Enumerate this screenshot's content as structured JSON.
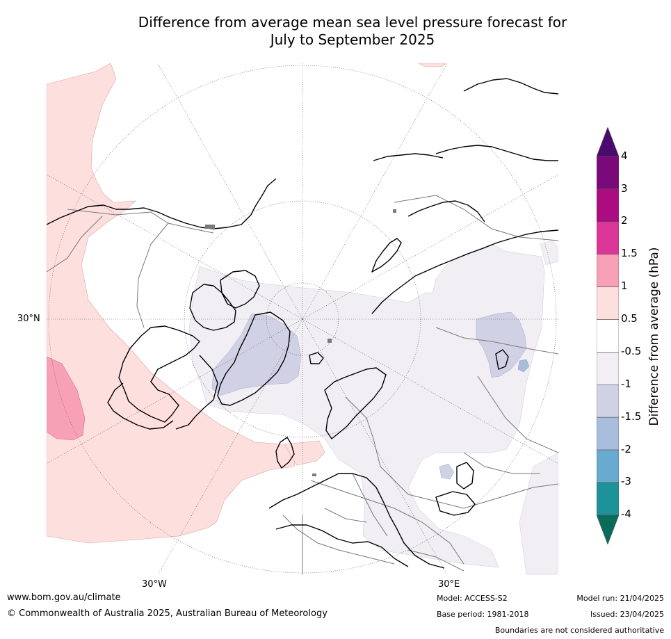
{
  "title_line1": "Difference from average mean sea level pressure forecast for",
  "title_line2": "July to September 2025",
  "map_labels": {
    "lat_label": "30°N",
    "lon_west": "30°W",
    "lon_east": "30°E"
  },
  "colorbar": {
    "title": "Difference from average (hPa)",
    "tick_labels": [
      "4",
      "3",
      "2",
      "1.5",
      "1",
      "0.5",
      "-0.5",
      "-1",
      "-1.5",
      "-2",
      "-3",
      "-4"
    ],
    "bins_top_to_bottom": [
      {
        "range": ">4",
        "color": "#4b0a6e"
      },
      {
        "range": "3 to 4",
        "color": "#7a0a79"
      },
      {
        "range": "2 to 3",
        "color": "#ac0c80"
      },
      {
        "range": "1.5 to 2",
        "color": "#dc3598"
      },
      {
        "range": "1 to 1.5",
        "color": "#f8a0b6"
      },
      {
        "range": "0.5 to 1",
        "color": "#fddfde"
      },
      {
        "range": "-0.5 to 0.5",
        "color": "#ffffff"
      },
      {
        "range": "-1 to -0.5",
        "color": "#f1eef4"
      },
      {
        "range": "-1.5 to -1",
        "color": "#d1d1e6"
      },
      {
        "range": "-2 to -1.5",
        "color": "#a8bddb"
      },
      {
        "range": "-3 to -2",
        "color": "#69abd0"
      },
      {
        "range": "-4 to -3",
        "color": "#1d9299"
      },
      {
        "range": "<-4",
        "color": "#096c5b"
      }
    ]
  },
  "footer": {
    "website": "www.bom.gov.au/climate",
    "copyright": "© Commonwealth of Australia 2025, Australian Bureau of Meteorology",
    "model": "Model: ACCESS-S2",
    "base_period": "Base period: 1981-2018",
    "model_run": "Model run: 21/04/2025",
    "issued": "Issued: 23/04/2025",
    "disclaimer": "Boundaries are not considered authoritative"
  }
}
